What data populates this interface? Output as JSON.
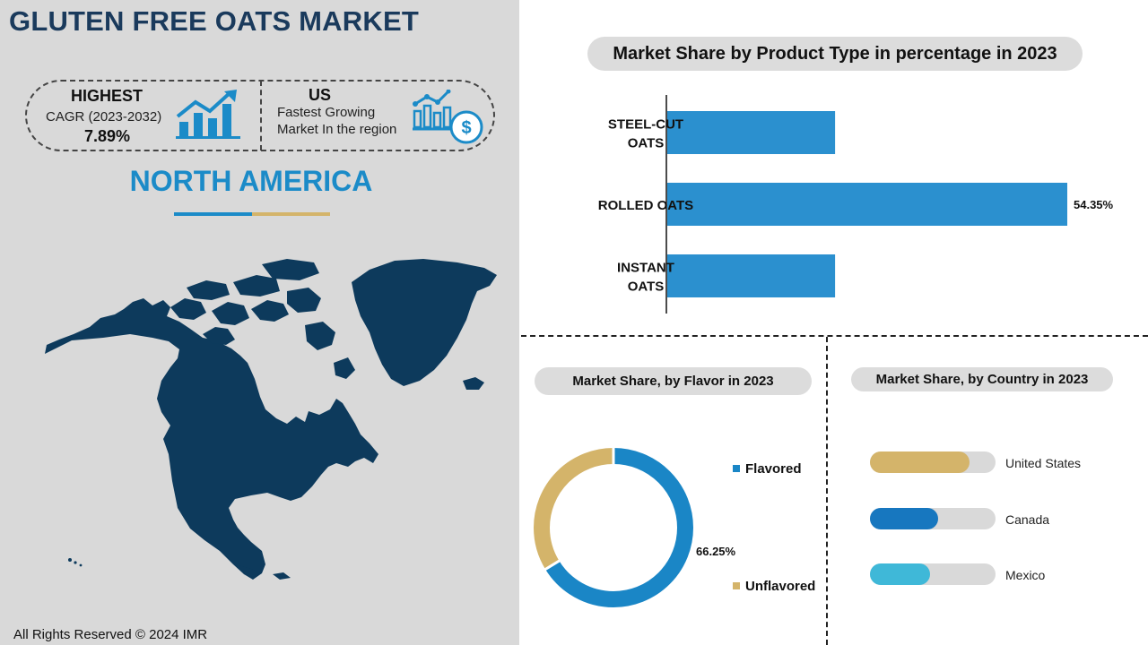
{
  "header": {
    "title": "GLUTEN FREE OATS MARKET"
  },
  "stats": {
    "highest": {
      "heading": "HIGHEST",
      "label": "CAGR (2023-2032)",
      "value": "7.89%",
      "icon": "growth-chart-icon"
    },
    "leader": {
      "heading": "US",
      "line1": "Fastest Growing",
      "line2": "Market In the region",
      "icon": "bar-chart-dollar-icon"
    }
  },
  "region": {
    "name": "NORTH AMERICA",
    "map": "north-america-map"
  },
  "footer": {
    "copyright": "All Rights Reserved © 2024 IMR"
  },
  "colors": {
    "navy": "#1a3a5c",
    "blue": "#2b90cf",
    "gold": "#d4b46a",
    "donut_blue": "#1a86c6",
    "canada": "#1777bf",
    "mexico": "#3fb8d8",
    "map": "#0d3a5c"
  },
  "chart_data": [
    {
      "type": "bar",
      "orientation": "horizontal",
      "title": "Market Share by Product Type in percentage in 2023",
      "categories": [
        "STEEL-CUT OATS",
        "ROLLED OATS",
        "INSTANT OATS"
      ],
      "category_lines": [
        [
          "STEEL-CUT",
          "OATS"
        ],
        [
          "ROLLED OATS"
        ],
        [
          "INSTANT",
          "OATS"
        ]
      ],
      "values": [
        22.8,
        54.35,
        22.8
      ],
      "value_labels": [
        "",
        "54.35%",
        ""
      ],
      "xlim": [
        0,
        54.35
      ]
    },
    {
      "type": "pie",
      "style": "donut",
      "title": "Market Share, by Flavor in 2023",
      "labels": [
        "Flavored",
        "Unflavored"
      ],
      "values": [
        66.25,
        33.75
      ],
      "value_labels": [
        "66.25%",
        ""
      ],
      "colors": [
        "#1a86c6",
        "#d4b46a"
      ]
    },
    {
      "type": "bar",
      "style": "progress",
      "title": "Market Share, by Country in 2023",
      "categories": [
        "United States",
        "Canada",
        "Mexico"
      ],
      "fractions": [
        0.79,
        0.54,
        0.48
      ],
      "colors": [
        "#d4b46a",
        "#1777bf",
        "#3fb8d8"
      ]
    }
  ]
}
